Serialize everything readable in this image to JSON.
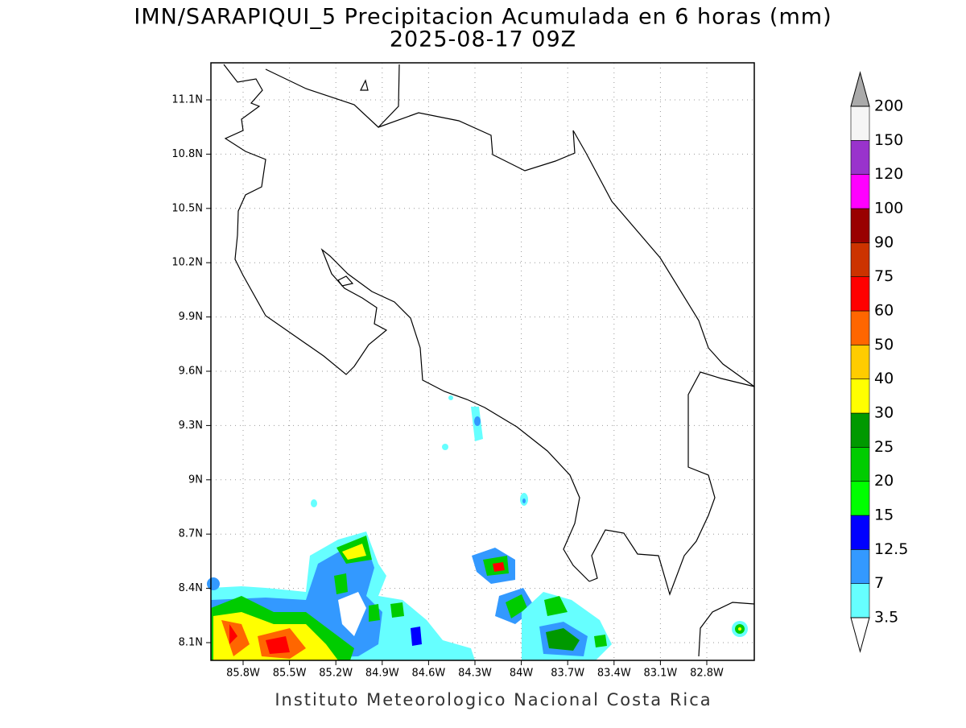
{
  "map": {
    "title": "IMN/SARAPIQUI_5 Precipitacion Acumulada en 6 horas (mm)",
    "subtitle": "2025-08-17 09Z",
    "lat_ticks": [
      "11.1N",
      "10.8N",
      "10.5N",
      "10.2N",
      "9.9N",
      "9.6N",
      "9.3N",
      "9N",
      "8.7N",
      "8.4N",
      "8.1N"
    ],
    "lon_ticks": [
      "85.8W",
      "85.5W",
      "85.2W",
      "84.9W",
      "84.6W",
      "84.3W",
      "84W",
      "83.7W",
      "83.4W",
      "83.1W",
      "82.8W"
    ],
    "colorbar": {
      "levels": [
        3.5,
        7,
        12.5,
        15,
        20,
        25,
        30,
        40,
        50,
        60,
        75,
        90,
        100,
        120,
        150,
        200
      ],
      "colors": [
        "#ffffff",
        "#66ffff",
        "#3399ff",
        "#0000ff",
        "#00ff00",
        "#00cc00",
        "#009900",
        "#ffff00",
        "#ffcc00",
        "#ff6600",
        "#ff0000",
        "#cc3300",
        "#990000",
        "#ff00ff",
        "#9933cc",
        "#f5f5f5",
        "#aaaaaa"
      ]
    },
    "footer": "Instituto Meteorologico Nacional Costa Rica"
  }
}
